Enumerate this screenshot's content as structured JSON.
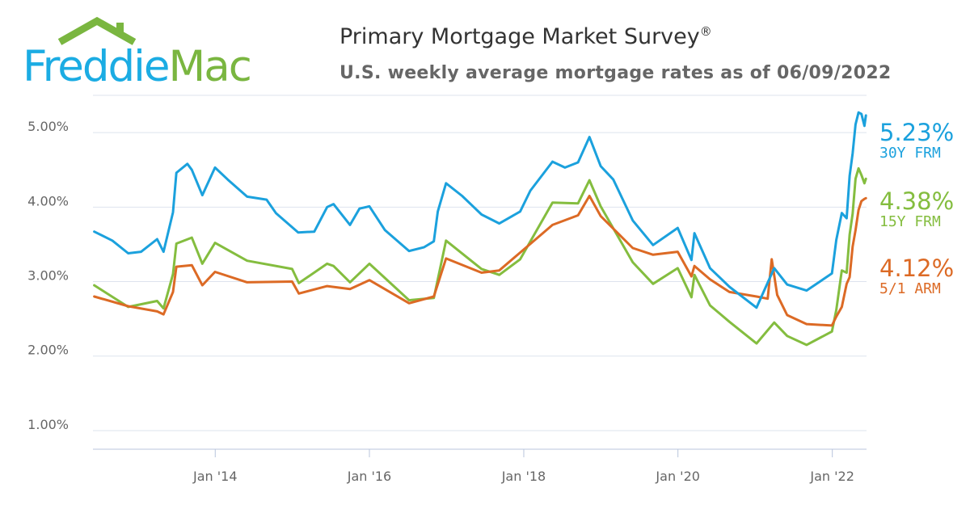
{
  "logo": {
    "part1": "Freddie",
    "part2": "Mac"
  },
  "header": {
    "title": "Primary Mortgage Market Survey",
    "title_mark": "®",
    "subtitle": "U.S. weekly average mortgage rates as of 06/09/2022"
  },
  "colors": {
    "frm30": "#1ba1dd",
    "frm15": "#84bd3f",
    "arm51": "#dc6a25",
    "grid": "#dde3ee",
    "axis": "#b8c4dc"
  },
  "chart_data": {
    "type": "line",
    "ylim": [
      0.75,
      5.5
    ],
    "xlim": [
      "2012-06-01",
      "2022-06-12"
    ],
    "y_ticks": [
      1,
      2,
      3,
      4,
      5
    ],
    "y_tick_labels": [
      "1.00%",
      "2.00%",
      "3.00%",
      "4.00%",
      "5.00%"
    ],
    "x_ticks": [
      "2014-01-01",
      "2016-01-01",
      "2018-01-01",
      "2020-01-01",
      "2022-01-01"
    ],
    "x_tick_labels": [
      "Jan '14",
      "Jan '16",
      "Jan '18",
      "Jan '20",
      "Jan '22"
    ],
    "grid": true,
    "series": [
      {
        "key": "frm30",
        "name": "30Y FRM",
        "latest": "5.23%",
        "x": [
          "2012-06-07",
          "2012-09-01",
          "2012-11-15",
          "2013-01-15",
          "2013-04-01",
          "2013-05-01",
          "2013-06-15",
          "2013-07-01",
          "2013-08-22",
          "2013-09-12",
          "2013-11-01",
          "2013-12-31",
          "2014-03-01",
          "2014-06-01",
          "2014-09-01",
          "2014-10-15",
          "2015-01-29",
          "2015-04-15",
          "2015-06-15",
          "2015-07-15",
          "2015-10-01",
          "2015-11-15",
          "2016-01-01",
          "2016-03-15",
          "2016-07-07",
          "2016-09-15",
          "2016-11-01",
          "2016-11-20",
          "2016-12-29",
          "2017-03-15",
          "2017-06-15",
          "2017-09-07",
          "2017-12-15",
          "2018-02-01",
          "2018-05-17",
          "2018-07-15",
          "2018-09-15",
          "2018-11-08",
          "2018-12-31",
          "2019-03-01",
          "2019-06-01",
          "2019-09-05",
          "2019-12-31",
          "2020-03-05",
          "2020-03-19",
          "2020-06-01",
          "2020-09-01",
          "2021-01-07",
          "2021-04-01",
          "2021-06-01",
          "2021-09-01",
          "2021-12-30",
          "2022-01-20",
          "2022-02-15",
          "2022-03-10",
          "2022-03-24",
          "2022-04-07",
          "2022-04-21",
          "2022-05-05",
          "2022-05-19",
          "2022-06-02",
          "2022-06-09"
        ],
        "y": [
          3.67,
          3.55,
          3.38,
          3.4,
          3.57,
          3.4,
          3.93,
          4.46,
          4.58,
          4.5,
          4.16,
          4.53,
          4.37,
          4.14,
          4.1,
          3.92,
          3.66,
          3.67,
          4.0,
          4.04,
          3.76,
          3.98,
          4.01,
          3.69,
          3.41,
          3.46,
          3.54,
          3.94,
          4.32,
          4.15,
          3.9,
          3.78,
          3.94,
          4.22,
          4.61,
          4.53,
          4.6,
          4.94,
          4.55,
          4.37,
          3.82,
          3.49,
          3.72,
          3.29,
          3.65,
          3.18,
          2.93,
          2.65,
          3.18,
          2.96,
          2.88,
          3.11,
          3.56,
          3.92,
          3.85,
          4.42,
          4.72,
          5.11,
          5.27,
          5.25,
          5.09,
          5.23
        ]
      },
      {
        "key": "frm15",
        "name": "15Y FRM",
        "latest": "4.38%",
        "x": [
          "2012-06-07",
          "2012-11-15",
          "2013-04-01",
          "2013-05-01",
          "2013-06-15",
          "2013-07-01",
          "2013-09-12",
          "2013-11-01",
          "2013-12-31",
          "2014-06-01",
          "2014-12-31",
          "2015-02-01",
          "2015-06-15",
          "2015-07-15",
          "2015-10-01",
          "2016-01-01",
          "2016-07-07",
          "2016-11-01",
          "2016-12-29",
          "2017-06-15",
          "2017-09-07",
          "2017-12-15",
          "2018-05-17",
          "2018-09-15",
          "2018-11-08",
          "2018-12-31",
          "2019-06-01",
          "2019-09-05",
          "2019-12-31",
          "2020-03-05",
          "2020-03-19",
          "2020-06-01",
          "2020-09-01",
          "2021-01-07",
          "2021-04-01",
          "2021-06-01",
          "2021-09-01",
          "2021-12-30",
          "2022-01-20",
          "2022-02-15",
          "2022-03-10",
          "2022-03-24",
          "2022-04-07",
          "2022-04-21",
          "2022-05-05",
          "2022-05-19",
          "2022-06-02",
          "2022-06-09"
        ],
        "y": [
          2.95,
          2.66,
          2.74,
          2.64,
          3.1,
          3.51,
          3.59,
          3.24,
          3.52,
          3.28,
          3.17,
          2.98,
          3.24,
          3.21,
          2.99,
          3.24,
          2.75,
          2.78,
          3.55,
          3.17,
          3.09,
          3.3,
          4.06,
          4.05,
          4.36,
          4.01,
          3.26,
          2.97,
          3.18,
          2.79,
          3.09,
          2.68,
          2.46,
          2.17,
          2.45,
          2.27,
          2.15,
          2.33,
          2.62,
          3.15,
          3.12,
          3.63,
          3.91,
          4.38,
          4.52,
          4.43,
          4.32,
          4.38
        ]
      },
      {
        "key": "arm51",
        "name": "5/1 ARM",
        "latest": "4.12%",
        "x": [
          "2012-06-07",
          "2012-11-15",
          "2013-04-01",
          "2013-05-01",
          "2013-06-15",
          "2013-07-01",
          "2013-09-12",
          "2013-11-01",
          "2013-12-31",
          "2014-06-01",
          "2014-12-31",
          "2015-02-01",
          "2015-06-15",
          "2015-10-01",
          "2016-01-01",
          "2016-07-07",
          "2016-11-01",
          "2016-12-29",
          "2017-06-15",
          "2017-09-07",
          "2017-12-15",
          "2018-05-17",
          "2018-09-15",
          "2018-11-08",
          "2018-12-31",
          "2019-06-01",
          "2019-09-05",
          "2019-12-31",
          "2020-03-05",
          "2020-03-19",
          "2020-06-01",
          "2020-09-01",
          "2021-01-07",
          "2021-03-01",
          "2021-03-20",
          "2021-04-15",
          "2021-06-01",
          "2021-09-01",
          "2021-12-30",
          "2022-01-20",
          "2022-02-15",
          "2022-03-10",
          "2022-03-24",
          "2022-04-07",
          "2022-04-21",
          "2022-05-05",
          "2022-05-19",
          "2022-06-02",
          "2022-06-09"
        ],
        "y": [
          2.8,
          2.67,
          2.6,
          2.56,
          2.86,
          3.2,
          3.22,
          2.95,
          3.13,
          2.99,
          3.0,
          2.84,
          2.94,
          2.9,
          3.02,
          2.71,
          2.8,
          3.31,
          3.12,
          3.15,
          3.39,
          3.76,
          3.89,
          4.15,
          3.88,
          3.45,
          3.36,
          3.4,
          3.07,
          3.21,
          3.03,
          2.86,
          2.8,
          2.77,
          3.3,
          2.82,
          2.55,
          2.43,
          2.41,
          2.53,
          2.66,
          2.97,
          3.06,
          3.47,
          3.69,
          3.96,
          4.08,
          4.11,
          4.12
        ]
      }
    ]
  }
}
